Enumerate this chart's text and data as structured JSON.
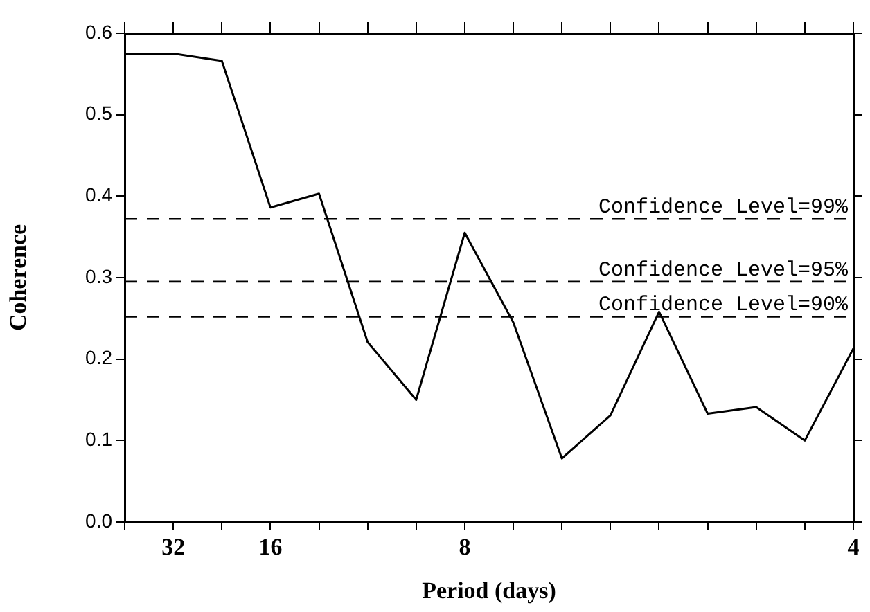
{
  "chart_data": {
    "type": "line",
    "xlabel": "Period (days)",
    "ylabel": "Coherence",
    "categories": [
      null,
      "32",
      null,
      "16",
      null,
      null,
      null,
      "8",
      null,
      null,
      null,
      null,
      null,
      null,
      null,
      "4"
    ],
    "series": [
      {
        "color": "#000000",
        "values": [
          0.575,
          0.575,
          0.566,
          0.386,
          0.403,
          0.221,
          0.15,
          0.355,
          0.245,
          0.078,
          0.131,
          0.258,
          0.133,
          0.141,
          0.1,
          0.213
        ]
      }
    ],
    "ylim": [
      0,
      0.6
    ],
    "yticks": [
      {
        "value": 0,
        "label": "0.0"
      },
      {
        "value": 0.1,
        "label": "0.1"
      },
      {
        "value": 0.2,
        "label": "0.2"
      },
      {
        "value": 0.3,
        "label": "0.3"
      },
      {
        "value": 0.4,
        "label": "0.4"
      },
      {
        "value": 0.5,
        "label": "0.5"
      },
      {
        "value": 0.6,
        "label": "0.6"
      }
    ],
    "ref_lines": [
      {
        "axis": "y",
        "value": 0.372,
        "line_style": "dashed"
      },
      {
        "axis": "y",
        "value": 0.295,
        "line_style": "dashed"
      },
      {
        "axis": "y",
        "value": 0.252,
        "line_style": "dashed"
      }
    ],
    "annotations": [
      {
        "text": "Confidence Level=99%",
        "x": "4",
        "y": 0.372
      },
      {
        "text": "Confidence Level=95%",
        "x": "4",
        "y": 0.295
      },
      {
        "text": "Confidence Level=90%",
        "x": "4",
        "y": 0.252
      }
    ],
    "grid": false,
    "legend": false,
    "marker": "none",
    "line_style": "solid"
  }
}
